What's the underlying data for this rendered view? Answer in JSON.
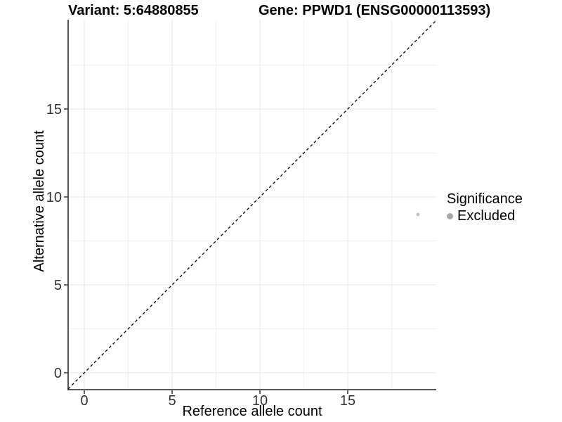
{
  "titles": {
    "variant": "Variant: 5:64880855",
    "gene": "Gene: PPWD1 (ENSG00000113593)"
  },
  "axes": {
    "x_label": "Reference allele count",
    "y_label": "Alternative allele count"
  },
  "legend": {
    "title": "Significance",
    "items": [
      {
        "label": "Excluded",
        "color": "#a8a8a8"
      }
    ]
  },
  "chart_data": {
    "type": "scatter",
    "title": "Variant: 5:64880855   Gene: PPWD1 (ENSG00000113593)",
    "xlabel": "Reference allele count",
    "ylabel": "Alternative allele count",
    "xlim": [
      -1,
      20
    ],
    "ylim": [
      -1,
      20
    ],
    "x_ticks": [
      0,
      5,
      10,
      15
    ],
    "y_ticks": [
      0,
      5,
      10,
      15
    ],
    "minor_ticks": [
      2.5,
      7.5,
      12.5,
      17.5
    ],
    "grid": true,
    "legend_position": "right",
    "series": [
      {
        "name": "Excluded",
        "color": "#c2c2c2",
        "points": [
          {
            "x": 19,
            "y": 9
          }
        ]
      }
    ],
    "reference_line": {
      "type": "identity",
      "equation": "y = x",
      "style": "dashed",
      "color": "#000000"
    },
    "colors": {
      "axis_line": "#404040",
      "tick_label": "#333333",
      "grid_major": "#e7e7e7",
      "grid_minor": "#f0f0f0"
    }
  }
}
